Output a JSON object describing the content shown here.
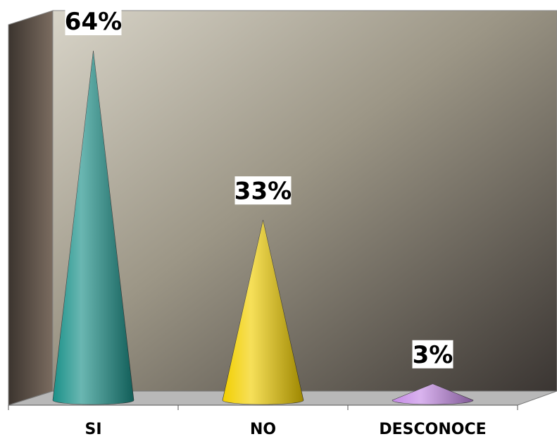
{
  "chart_data": {
    "type": "cone",
    "categories": [
      "SI",
      "NO",
      "DESCONOCE"
    ],
    "values": [
      64,
      33,
      3
    ],
    "value_labels": [
      "64%",
      "33%",
      "3%"
    ],
    "colors": [
      "#1a9088",
      "#f2cf00",
      "#c58ae6"
    ]
  }
}
